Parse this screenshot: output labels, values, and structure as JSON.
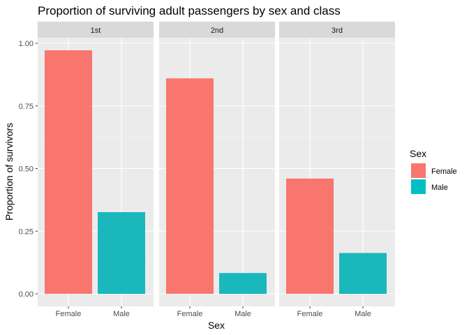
{
  "chart_data": {
    "type": "bar",
    "title": "Proportion of surviving adult passengers by sex and class",
    "xlabel": "Sex",
    "ylabel": "Proportion of survivors",
    "facets": [
      "1st",
      "2nd",
      "3rd"
    ],
    "categories": [
      "Female",
      "Male"
    ],
    "values": [
      [
        0.972,
        0.326
      ],
      [
        0.86,
        0.083
      ],
      [
        0.46,
        0.163
      ]
    ],
    "ylim": [
      0,
      1.0
    ],
    "yticks": [
      "0.00",
      "0.25",
      "0.50",
      "0.75",
      "1.00"
    ],
    "ytick_values": [
      0,
      0.25,
      0.5,
      0.75,
      1.0
    ],
    "grid": true,
    "legend": {
      "title": "Sex",
      "placement": "right",
      "entries": [
        {
          "label": "Female",
          "color": "#F8766D"
        },
        {
          "label": "Male",
          "color": "#00BFC4"
        }
      ]
    },
    "colors": {
      "Female": "#F8766D",
      "Male": "#1AB7BD"
    }
  }
}
